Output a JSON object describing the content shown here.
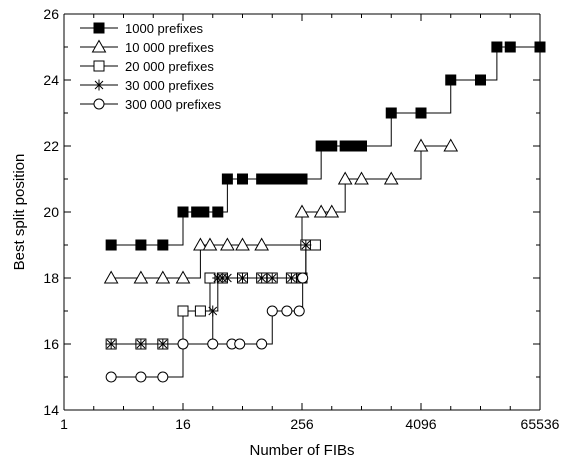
{
  "chart_data": {
    "type": "line",
    "title": "",
    "xlabel": "Number of FIBs",
    "ylabel": "Best split position",
    "xscale": "log2",
    "xlim": [
      1,
      65536
    ],
    "ylim": [
      14,
      26
    ],
    "xticks": [
      1,
      16,
      256,
      4096,
      65536
    ],
    "xtick_labels": [
      "1",
      "16",
      "256",
      "4096",
      "65536"
    ],
    "yticks": [
      14,
      16,
      18,
      20,
      22,
      24,
      26
    ],
    "ytick_labels": [
      "14",
      "16",
      "18",
      "20",
      "22",
      "24",
      "26"
    ],
    "grid": false,
    "legend_position": "top-left",
    "series": [
      {
        "name": "1000 prefixes",
        "marker": "filled-square",
        "points": [
          [
            3,
            19
          ],
          [
            6,
            19
          ],
          [
            10,
            19
          ],
          [
            16,
            20
          ],
          [
            22,
            20
          ],
          [
            26,
            20
          ],
          [
            36,
            20
          ],
          [
            45,
            21
          ],
          [
            64,
            21
          ],
          [
            100,
            21
          ],
          [
            128,
            21
          ],
          [
            160,
            21
          ],
          [
            200,
            21
          ],
          [
            256,
            21
          ],
          [
            400,
            22
          ],
          [
            512,
            22
          ],
          [
            700,
            22
          ],
          [
            900,
            22
          ],
          [
            1024,
            22
          ],
          [
            2048,
            23
          ],
          [
            4096,
            23
          ],
          [
            8192,
            24
          ],
          [
            16384,
            24
          ],
          [
            24000,
            25
          ],
          [
            32768,
            25
          ],
          [
            65536,
            25
          ]
        ]
      },
      {
        "name": "10 000 prefixes",
        "marker": "open-triangle",
        "points": [
          [
            3,
            18
          ],
          [
            6,
            18
          ],
          [
            10,
            18
          ],
          [
            16,
            18
          ],
          [
            24,
            19
          ],
          [
            30,
            19
          ],
          [
            45,
            19
          ],
          [
            64,
            19
          ],
          [
            100,
            19
          ],
          [
            256,
            20
          ],
          [
            400,
            20
          ],
          [
            512,
            20
          ],
          [
            700,
            21
          ],
          [
            1024,
            21
          ],
          [
            2048,
            21
          ],
          [
            4096,
            22
          ],
          [
            8192,
            22
          ]
        ]
      },
      {
        "name": "20 000 prefixes",
        "marker": "open-square",
        "points": [
          [
            3,
            16
          ],
          [
            6,
            16
          ],
          [
            10,
            16
          ],
          [
            16,
            17
          ],
          [
            24,
            17
          ],
          [
            30,
            18
          ],
          [
            40,
            18
          ],
          [
            64,
            18
          ],
          [
            100,
            18
          ],
          [
            128,
            18
          ],
          [
            200,
            18
          ],
          [
            256,
            18
          ],
          [
            280,
            19
          ],
          [
            350,
            19
          ]
        ]
      },
      {
        "name": "30 000 prefixes",
        "marker": "asterisk",
        "points": [
          [
            3,
            16
          ],
          [
            6,
            16
          ],
          [
            10,
            16
          ],
          [
            16,
            16
          ],
          [
            32,
            17
          ],
          [
            36,
            18
          ],
          [
            40,
            18
          ],
          [
            45,
            18
          ],
          [
            64,
            18
          ],
          [
            100,
            18
          ],
          [
            128,
            18
          ],
          [
            200,
            18
          ],
          [
            256,
            18
          ],
          [
            280,
            19
          ]
        ]
      },
      {
        "name": "300 000 prefixes",
        "marker": "open-circle",
        "points": [
          [
            3,
            15
          ],
          [
            6,
            15
          ],
          [
            10,
            15
          ],
          [
            16,
            16
          ],
          [
            32,
            16
          ],
          [
            50,
            16
          ],
          [
            60,
            16
          ],
          [
            100,
            16
          ],
          [
            128,
            17
          ],
          [
            180,
            17
          ],
          [
            240,
            17
          ],
          [
            260,
            18
          ]
        ]
      }
    ],
    "colors": {
      "line": "#000000",
      "background": "#ffffff"
    }
  }
}
